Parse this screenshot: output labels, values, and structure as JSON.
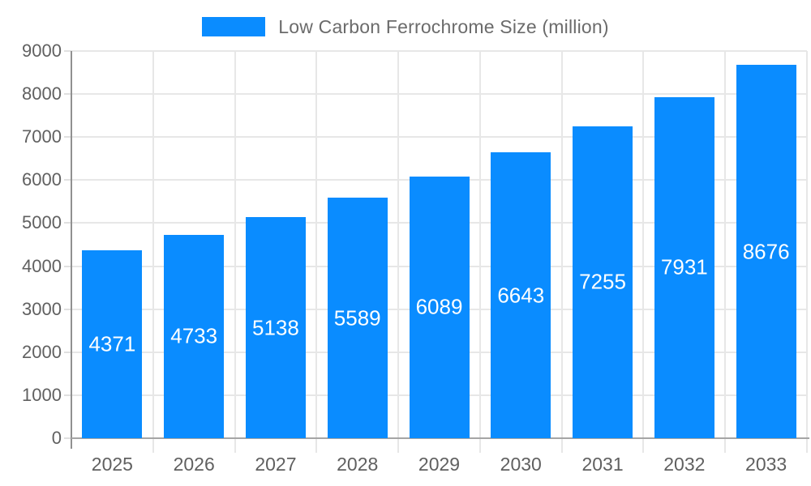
{
  "chart_data": {
    "type": "bar",
    "title": "Low Carbon Ferrochrome Size (million)",
    "legend_entries": [
      "Low Carbon Ferrochrome Size (million)"
    ],
    "legend_position": "top-center",
    "categories": [
      "2025",
      "2026",
      "2027",
      "2028",
      "2029",
      "2030",
      "2031",
      "2032",
      "2033"
    ],
    "series": [
      {
        "name": "Low Carbon Ferrochrome Size (million)",
        "values": [
          4371,
          4733,
          5138,
          5589,
          6089,
          6643,
          7255,
          7931,
          8676
        ]
      }
    ],
    "value_labels": [
      "4371",
      "4733",
      "5138",
      "5589",
      "6089",
      "6643",
      "7255",
      "7931",
      "8676"
    ],
    "xlabel": "",
    "ylabel": "",
    "ylim": [
      0,
      9000
    ],
    "yticks": [
      0,
      1000,
      2000,
      3000,
      4000,
      5000,
      6000,
      7000,
      8000,
      9000
    ],
    "ytick_labels": [
      "0",
      "1000",
      "2000",
      "3000",
      "4000",
      "5000",
      "6000",
      "7000",
      "8000",
      "9000"
    ],
    "grid": true
  },
  "colors": {
    "bar": "#0a8cff",
    "value_label": "#ffffff",
    "grid": "#e7e7e7",
    "axis": "#9a9a9a",
    "tick_label": "#606060",
    "legend_text": "#6b6b6b",
    "background": "#ffffff"
  }
}
